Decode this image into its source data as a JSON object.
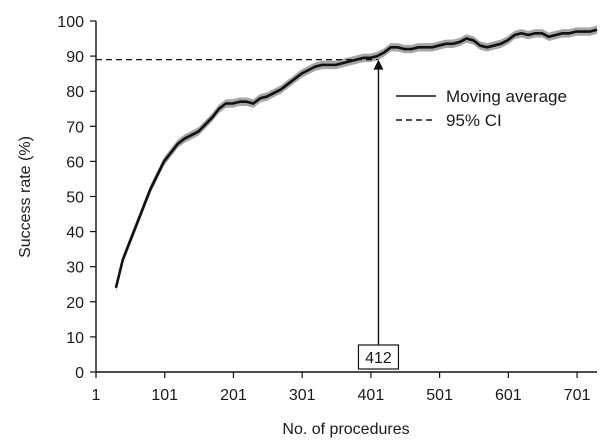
{
  "chart_data": {
    "type": "line",
    "xlabel": "No. of procedures",
    "ylabel": "Success rate (%)",
    "xlim": [
      1,
      730
    ],
    "ylim": [
      0,
      100
    ],
    "xticks": [
      1,
      101,
      201,
      301,
      401,
      501,
      601,
      701
    ],
    "yticks": [
      0,
      10,
      20,
      30,
      40,
      50,
      60,
      70,
      80,
      90,
      100
    ],
    "grid": false,
    "legend_position": "right",
    "series": [
      {
        "name": "Moving average",
        "style": "solid",
        "color": "#111111",
        "x": [
          30,
          40,
          50,
          60,
          70,
          80,
          90,
          100,
          110,
          120,
          130,
          140,
          150,
          160,
          170,
          180,
          190,
          200,
          210,
          220,
          230,
          240,
          250,
          260,
          270,
          280,
          290,
          300,
          310,
          320,
          330,
          340,
          350,
          360,
          370,
          380,
          390,
          400,
          410,
          420,
          430,
          440,
          450,
          460,
          470,
          480,
          490,
          500,
          510,
          520,
          530,
          540,
          550,
          560,
          570,
          580,
          590,
          600,
          610,
          620,
          630,
          640,
          650,
          660,
          670,
          680,
          690,
          700,
          710,
          720,
          730
        ],
        "y": [
          24,
          32,
          37,
          42,
          47,
          52,
          56,
          60,
          62.5,
          65,
          66.5,
          67.5,
          68.5,
          70.5,
          72.5,
          75,
          76.5,
          76.5,
          77,
          77,
          76.5,
          78,
          78.5,
          79.5,
          80.5,
          82,
          83.5,
          85,
          86,
          87,
          87.5,
          87.5,
          87.5,
          88,
          88.5,
          89,
          89.5,
          89.5,
          90,
          91,
          92.5,
          92.5,
          92,
          92,
          92.5,
          92.5,
          92.5,
          93,
          93.5,
          93.5,
          94,
          95,
          94.5,
          93,
          92.5,
          93,
          93.5,
          94.5,
          96,
          96.5,
          96,
          96.5,
          96.5,
          95.5,
          96,
          96.5,
          96.5,
          97,
          97,
          97,
          97.5
        ]
      },
      {
        "name": "95% CI",
        "style": "dashed",
        "color": "#111111",
        "band_color": "#a6a6a6",
        "band_halfwidth": 1.2
      }
    ],
    "annotations": [
      {
        "label": "412",
        "x": 412,
        "y": 89
      }
    ],
    "reference_line": {
      "y": 89,
      "x_from": 1,
      "x_to": 412,
      "style": "dashed"
    }
  }
}
